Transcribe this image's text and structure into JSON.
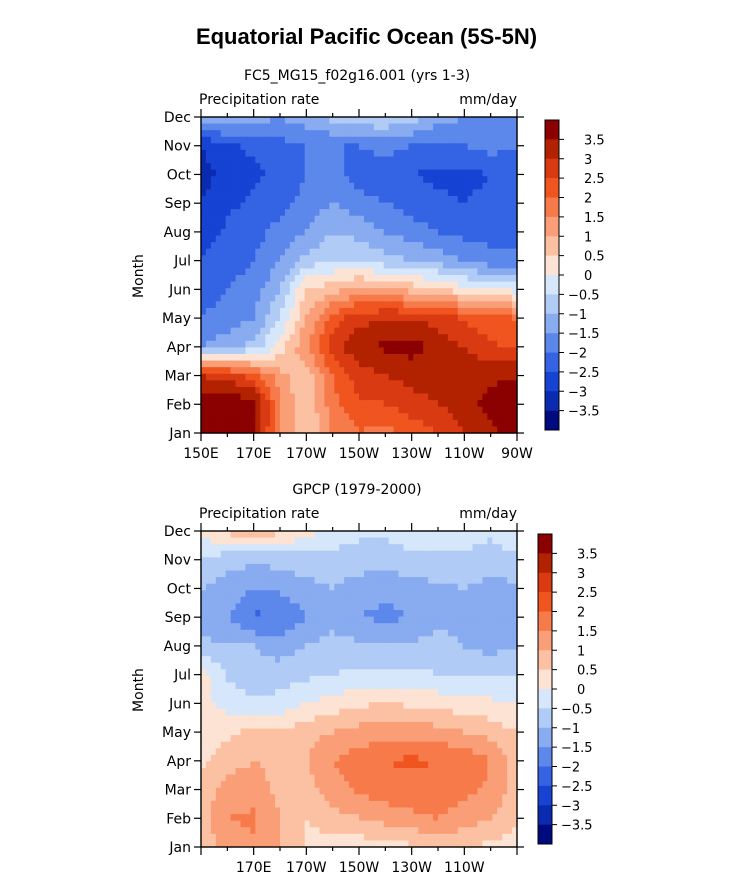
{
  "title": "Equatorial Pacific Ocean (5S-5N)",
  "chart_data": [
    {
      "type": "heatmap",
      "title": "FC5_MG15_f02g16.001 (yrs 1-3)",
      "left_label": "Precipitation rate",
      "right_label": "mm/day",
      "ylabel": "Month",
      "x_ticks": [
        "150E",
        "170E",
        "170W",
        "150W",
        "130W",
        "110W",
        "90W"
      ],
      "y_ticks": [
        "Jan",
        "Feb",
        "Mar",
        "Apr",
        "May",
        "Jun",
        "Jul",
        "Aug",
        "Sep",
        "Oct",
        "Nov",
        "Dec"
      ],
      "colorbar_labels": [
        "3.5",
        "3",
        "2.5",
        "2",
        "1.5",
        "1",
        "0.5",
        "0",
        "−0.5",
        "−1",
        "−1.5",
        "−2",
        "−2.5",
        "−3",
        "−3.5"
      ],
      "color_levels": [
        "#8b0000",
        "#b22200",
        "#d93a12",
        "#f0541f",
        "#f77a4a",
        "#fa9e77",
        "#fcc1a3",
        "#fde3d3",
        "#d6e6fb",
        "#b0cbf6",
        "#89abf0",
        "#5c88ec",
        "#3464e4",
        "#1743d4",
        "#0a2bb0",
        "#000a80"
      ],
      "grid": [
        [
          3.8,
          3.8,
          3.6,
          1.5,
          0.5,
          1.5,
          2.0,
          1.8,
          2.2,
          2.5,
          3.0,
          3.4,
          3.6
        ],
        [
          3.9,
          3.9,
          3.8,
          1.5,
          0.5,
          1.8,
          2.4,
          2.5,
          2.8,
          3.0,
          3.3,
          3.7,
          3.9
        ],
        [
          3.0,
          2.8,
          2.2,
          1.2,
          0.6,
          2.0,
          2.8,
          3.0,
          3.2,
          3.3,
          3.3,
          3.4,
          3.4
        ],
        [
          -1.5,
          -1.2,
          -0.8,
          0.2,
          1.5,
          2.8,
          3.4,
          3.6,
          3.7,
          3.3,
          3.0,
          2.6,
          2.4
        ],
        [
          -2.0,
          -1.8,
          -1.5,
          -0.5,
          1.0,
          2.2,
          2.8,
          3.0,
          3.0,
          2.8,
          2.4,
          2.2,
          2.0
        ],
        [
          -2.2,
          -2.0,
          -1.8,
          -1.0,
          0.5,
          0.8,
          1.2,
          1.0,
          0.8,
          0.6,
          0.2,
          0.0,
          -0.2
        ],
        [
          -2.5,
          -2.2,
          -2.0,
          -1.5,
          -0.8,
          -0.5,
          -0.5,
          -0.8,
          -1.0,
          -1.2,
          -1.5,
          -1.8,
          -2.0
        ],
        [
          -2.8,
          -2.4,
          -2.2,
          -1.8,
          -1.5,
          -1.0,
          -1.2,
          -1.5,
          -1.8,
          -2.0,
          -2.2,
          -2.2,
          -2.0
        ],
        [
          -3.0,
          -2.6,
          -2.4,
          -2.2,
          -1.8,
          -1.5,
          -1.8,
          -2.0,
          -2.2,
          -2.4,
          -2.5,
          -2.4,
          -2.2
        ],
        [
          -3.2,
          -2.8,
          -2.6,
          -2.4,
          -2.0,
          -1.8,
          -2.2,
          -2.4,
          -2.5,
          -2.6,
          -2.6,
          -2.5,
          -2.3
        ],
        [
          -3.0,
          -2.6,
          -2.4,
          -2.2,
          -2.0,
          -2.0,
          -2.0,
          -1.8,
          -2.0,
          -2.2,
          -2.0,
          -1.8,
          -2.0
        ],
        [
          -1.2,
          -1.0,
          -1.2,
          -1.5,
          -1.2,
          -0.8,
          -0.6,
          -0.5,
          -0.8,
          -1.2,
          -1.5,
          -1.8,
          -1.5
        ]
      ]
    },
    {
      "type": "heatmap",
      "title": "GPCP (1979-2000)",
      "left_label": "Precipitation rate",
      "right_label": "mm/day",
      "ylabel": "Month",
      "x_ticks": [
        "170E",
        "170W",
        "150W",
        "130W",
        "110W"
      ],
      "y_ticks": [
        "Jan",
        "Feb",
        "Mar",
        "Apr",
        "May",
        "Jun",
        "Jul",
        "Aug",
        "Sep",
        "Oct",
        "Nov",
        "Dec"
      ],
      "colorbar_labels": [
        "3.5",
        "3",
        "2.5",
        "2",
        "1.5",
        "1",
        "0.5",
        "0",
        "−0.5",
        "−1",
        "−1.5",
        "−2",
        "−2.5",
        "−3",
        "−3.5"
      ],
      "color_levels": [
        "#8b0000",
        "#b22200",
        "#d93a12",
        "#f0541f",
        "#f77a4a",
        "#fa9e77",
        "#fcc1a3",
        "#fde3d3",
        "#d6e6fb",
        "#b0cbf6",
        "#89abf0",
        "#5c88ec",
        "#3464e4",
        "#1743d4",
        "#0a2bb0",
        "#000a80"
      ],
      "grid": [
        [
          0.6,
          1.2,
          1.4,
          1.0,
          0.4,
          0.2,
          0.2,
          0.3,
          0.4,
          0.6,
          0.5,
          0.4,
          0.3
        ],
        [
          0.8,
          1.5,
          1.6,
          1.0,
          0.5,
          0.8,
          1.0,
          1.2,
          1.4,
          1.5,
          1.3,
          1.0,
          0.6
        ],
        [
          0.6,
          1.2,
          1.3,
          0.8,
          0.8,
          1.3,
          1.6,
          1.8,
          1.8,
          1.8,
          1.6,
          1.4,
          0.8
        ],
        [
          0.4,
          0.8,
          1.0,
          0.8,
          1.0,
          1.5,
          1.8,
          2.0,
          2.1,
          2.0,
          1.9,
          1.5,
          0.8
        ],
        [
          0.2,
          0.4,
          0.6,
          0.6,
          0.8,
          1.0,
          1.2,
          1.2,
          1.3,
          1.2,
          1.0,
          0.8,
          0.5
        ],
        [
          0.2,
          -0.2,
          -0.4,
          -0.3,
          0.0,
          0.2,
          0.4,
          0.5,
          0.4,
          0.3,
          0.2,
          0.1,
          0.0
        ],
        [
          0.3,
          -0.6,
          -0.8,
          -0.8,
          -0.6,
          -0.5,
          -0.4,
          -0.4,
          -0.4,
          -0.5,
          -0.6,
          -0.5,
          -0.5
        ],
        [
          -0.8,
          -1.0,
          -1.0,
          -1.2,
          -1.0,
          -0.8,
          -0.9,
          -1.0,
          -0.9,
          -0.8,
          -1.0,
          -1.2,
          -1.0
        ],
        [
          -1.5,
          -1.4,
          -2.1,
          -2.0,
          -1.5,
          -1.2,
          -1.5,
          -1.6,
          -1.5,
          -1.2,
          -1.1,
          -1.4,
          -1.3
        ],
        [
          -1.0,
          -1.2,
          -1.5,
          -1.4,
          -1.2,
          -1.0,
          -1.3,
          -1.4,
          -1.3,
          -1.1,
          -1.0,
          -1.2,
          -1.1
        ],
        [
          -0.6,
          -0.8,
          -0.9,
          -0.8,
          -0.7,
          -0.6,
          -0.7,
          -0.7,
          -0.6,
          -0.6,
          -0.6,
          -0.7,
          -0.6
        ],
        [
          0.2,
          0.6,
          1.0,
          0.6,
          0.2,
          -0.3,
          -0.4,
          -0.4,
          -0.3,
          -0.2,
          -0.3,
          -0.4,
          -0.2
        ]
      ]
    }
  ]
}
